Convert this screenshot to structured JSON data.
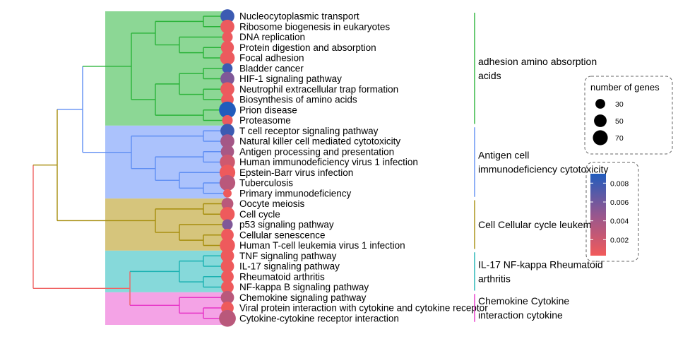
{
  "chart_data": {
    "type": "dendrogram",
    "leaves": [
      {
        "label": "Nucleocytoplasmic transport",
        "genes": 55,
        "p": 0.008
      },
      {
        "label": "Ribosome biogenesis in eukaryotes",
        "genes": 55,
        "p": 0.0006
      },
      {
        "label": "DNA replication",
        "genes": 32,
        "p": 0.0006
      },
      {
        "label": "Protein digestion and absorption",
        "genes": 48,
        "p": 0.0006
      },
      {
        "label": "Focal adhesion",
        "genes": 60,
        "p": 0.0006
      },
      {
        "label": "Bladder cancer",
        "genes": 30,
        "p": 0.008
      },
      {
        "label": "HIF-1 signaling pathway",
        "genes": 55,
        "p": 0.0055
      },
      {
        "label": "Neutrophil extracellular trap formation",
        "genes": 55,
        "p": 0.0006
      },
      {
        "label": "Biosynthesis of amino acids",
        "genes": 45,
        "p": 0.0006
      },
      {
        "label": "Prion disease",
        "genes": 80,
        "p": 0.009
      },
      {
        "label": "Proteasome",
        "genes": 32,
        "p": 0.0006
      },
      {
        "label": "T cell receptor signaling pathway",
        "genes": 55,
        "p": 0.008
      },
      {
        "label": "Natural killer cell mediated cytotoxicity",
        "genes": 55,
        "p": 0.004
      },
      {
        "label": "Antigen processing and presentation",
        "genes": 50,
        "p": 0.0038
      },
      {
        "label": "Human immunodeficiency virus 1 infection",
        "genes": 65,
        "p": 0.002
      },
      {
        "label": "Epstein-Barr virus infection",
        "genes": 70,
        "p": 0.0005
      },
      {
        "label": "Tuberculosis",
        "genes": 70,
        "p": 0.003
      },
      {
        "label": "Primary immunodeficiency",
        "genes": 20,
        "p": 0.0005
      },
      {
        "label": "Oocyte meiosis",
        "genes": 40,
        "p": 0.003
      },
      {
        "label": "Cell cycle",
        "genes": 60,
        "p": 0.0005
      },
      {
        "label": "p53 signaling pathway",
        "genes": 32,
        "p": 0.0055
      },
      {
        "label": "Cellular senescence",
        "genes": 45,
        "p": 0.0005
      },
      {
        "label": "Human T-cell leukemia virus 1 infection",
        "genes": 65,
        "p": 0.0005
      },
      {
        "label": "TNF signaling pathway",
        "genes": 50,
        "p": 0.0005
      },
      {
        "label": "IL-17 signaling pathway",
        "genes": 50,
        "p": 0.0005
      },
      {
        "label": "Rheumatoid arthritis",
        "genes": 45,
        "p": 0.0005
      },
      {
        "label": "NF-kappa B signaling pathway",
        "genes": 45,
        "p": 0.0005
      },
      {
        "label": "Chemokine signaling pathway",
        "genes": 50,
        "p": 0.003
      },
      {
        "label": "Viral protein interaction with cytokine and cytokine receptor",
        "genes": 45,
        "p": 0.0005
      },
      {
        "label": "Cytokine-cytokine receptor interaction",
        "genes": 80,
        "p": 0.003
      }
    ],
    "clusters": [
      {
        "start": 0,
        "end": 10,
        "color": "#2bb33a",
        "fill": "#8cd795",
        "label_lines": [
          "adhesion amino absorption",
          "acids"
        ]
      },
      {
        "start": 11,
        "end": 17,
        "color": "#5f8ef3",
        "fill": "#abc2fc",
        "label_lines": [
          "Antigen cell",
          "immunodeficiency cytotoxicity"
        ]
      },
      {
        "start": 18,
        "end": 22,
        "color": "#a68d0c",
        "fill": "#d6c57c",
        "label_lines": [
          "Cell Cellular cycle leukemia"
        ]
      },
      {
        "start": 23,
        "end": 26,
        "color": "#1db2b2",
        "fill": "#86d9da",
        "label_lines": [
          "IL-17 NF-kappa Rheumatoid",
          "arthritis"
        ]
      },
      {
        "start": 27,
        "end": 29,
        "color": "#e733c7",
        "fill": "#f4a3e6",
        "label_lines": [
          "Chemokine Cytokine",
          "interaction cytokine"
        ]
      }
    ],
    "root_color": "#f06464",
    "legend_size": {
      "title": "number of genes",
      "values": [
        30,
        50,
        70
      ]
    },
    "legend_color": {
      "ticks": [
        0.002,
        0.004,
        0.006,
        0.008
      ],
      "low": "#f25a5a",
      "high": "#215cbd",
      "min": 0.0003,
      "max": 0.009
    }
  }
}
